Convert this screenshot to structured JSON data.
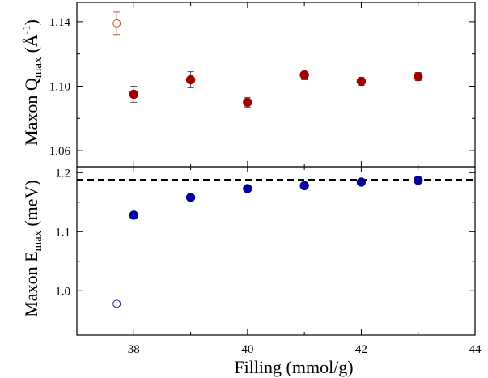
{
  "chart_data": [
    {
      "type": "scatter",
      "panel": "top",
      "ylabel": "Maxon Q",
      "ylabel_sub": "max",
      "ylabel_unit": "(Å",
      "ylabel_sup": "-1",
      "ylabel_end": ")",
      "xlim": [
        37,
        44
      ],
      "ylim": [
        1.05,
        1.152
      ],
      "yticks": [
        1.06,
        1.1,
        1.14
      ],
      "ytick_labels": [
        "1.06",
        "1.10",
        "1.14"
      ],
      "grid": false,
      "series": [
        {
          "marker": "filled-circle",
          "color": "#a00000",
          "x": [
            38,
            39,
            40,
            41,
            42,
            43
          ],
          "y": [
            1.095,
            1.104,
            1.09,
            1.107,
            1.103,
            1.106
          ],
          "err": [
            0.005,
            0.005,
            0.003,
            0.003,
            0.0025,
            0.0025
          ]
        },
        {
          "marker": "open-circle",
          "color": "#c84b3c",
          "x": [
            37.7
          ],
          "y": [
            1.139
          ],
          "err": [
            0.007
          ]
        }
      ]
    },
    {
      "type": "scatter",
      "panel": "bottom",
      "xlabel": "Filling (mmol/g)",
      "ylabel": "Maxon E",
      "ylabel_sub": "max",
      "ylabel_unit": "(meV)",
      "xlim": [
        37,
        44
      ],
      "ylim": [
        0.925,
        1.21
      ],
      "xticks": [
        38,
        40,
        42,
        44
      ],
      "xtick_labels": [
        "38",
        "40",
        "42",
        "44"
      ],
      "yticks": [
        1.0,
        1.1,
        1.2
      ],
      "ytick_labels": [
        "1.0",
        "1.1",
        "1.2"
      ],
      "grid": false,
      "reference_line": {
        "y": 1.188,
        "style": "dashed"
      },
      "series": [
        {
          "marker": "filled-circle",
          "color": "#00009c",
          "x": [
            38,
            39,
            40,
            41,
            42,
            43
          ],
          "y": [
            1.128,
            1.158,
            1.173,
            1.178,
            1.184,
            1.187
          ]
        },
        {
          "marker": "open-circle",
          "color": "#2a2aa0",
          "x": [
            37.7
          ],
          "y": [
            0.978
          ]
        }
      ]
    }
  ]
}
